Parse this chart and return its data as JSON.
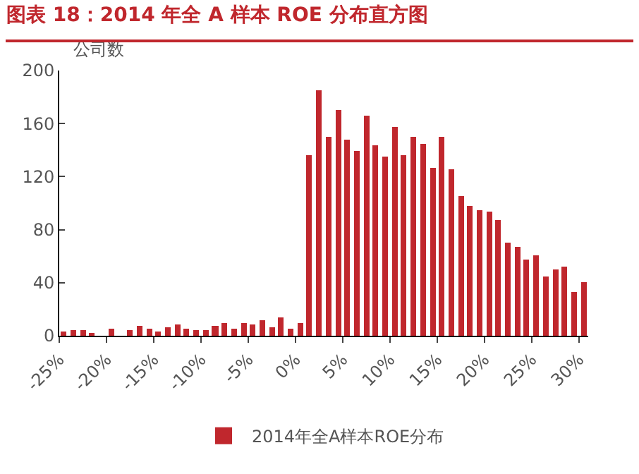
{
  "chart_data": {
    "type": "histogram",
    "title": "图表 18：2014 年全 A 样本 ROE 分布直方图",
    "ylabel": "公司数",
    "bins": [
      -25,
      -24,
      -23,
      -22,
      -21,
      -20,
      -19,
      -18,
      -17,
      -16,
      -15,
      -14,
      -13,
      -12,
      -11,
      -10,
      -9,
      -8,
      -7,
      -6,
      -5,
      -4,
      -3,
      -2,
      -1,
      0,
      1,
      2,
      3,
      4,
      5,
      6,
      7,
      8,
      9,
      10,
      11,
      12,
      13,
      14,
      15,
      16,
      17,
      18,
      19,
      20,
      21,
      22,
      23,
      24,
      25,
      26,
      27,
      28,
      29,
      30,
      31
    ],
    "series": [
      {
        "name": "2014年全A样本ROE分布",
        "color": "#c0272d",
        "values": [
          3,
          4,
          4,
          2,
          0,
          5,
          0,
          4,
          7,
          5,
          3,
          6,
          8,
          5,
          4,
          4,
          7,
          10,
          5,
          10,
          8,
          12,
          6,
          14,
          5,
          10,
          136,
          185,
          150,
          170,
          148,
          139,
          166,
          144,
          135,
          157,
          136,
          150,
          145,
          127,
          150,
          126,
          105,
          98,
          95,
          94,
          87,
          70,
          67,
          57,
          61,
          45,
          50,
          52,
          33,
          40
        ]
      }
    ],
    "xlim": [
      -25,
      31
    ],
    "xticks": [
      {
        "value": -25,
        "label": "-25%"
      },
      {
        "value": -20,
        "label": "-20%"
      },
      {
        "value": -15,
        "label": "-15%"
      },
      {
        "value": -10,
        "label": "-10%"
      },
      {
        "value": -5,
        "label": "-5%"
      },
      {
        "value": 0,
        "label": "0%"
      },
      {
        "value": 5,
        "label": "5%"
      },
      {
        "value": 10,
        "label": "10%"
      },
      {
        "value": 15,
        "label": "15%"
      },
      {
        "value": 20,
        "label": "20%"
      },
      {
        "value": 25,
        "label": "25%"
      },
      {
        "value": 30,
        "label": "30%"
      }
    ],
    "ylim": [
      0,
      200
    ],
    "yticks": [
      0,
      40,
      80,
      120,
      160,
      200
    ],
    "grid": false,
    "legend": "bottom"
  }
}
